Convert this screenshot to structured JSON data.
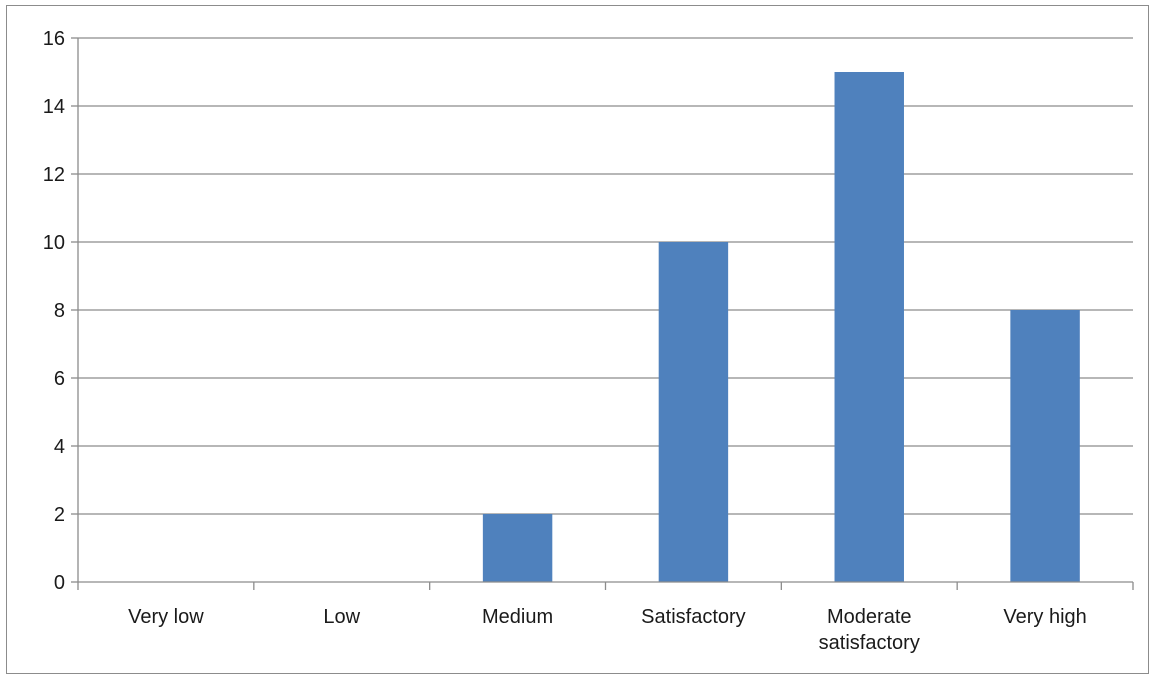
{
  "chart_data": {
    "type": "bar",
    "title": "",
    "xlabel": "",
    "ylabel": "",
    "categories": [
      [
        "Very low"
      ],
      [
        "Low"
      ],
      [
        "Medium"
      ],
      [
        "Satisfactory"
      ],
      [
        "Moderate",
        "satisfactory"
      ],
      [
        "Very high"
      ]
    ],
    "values": [
      0,
      0,
      2,
      10,
      15,
      8
    ],
    "ylim": [
      0,
      16
    ],
    "yticks": [
      "0",
      "2",
      "4",
      "6",
      "8",
      "10",
      "12",
      "14",
      "16"
    ],
    "grid": true,
    "legend": "none",
    "bar_color": "#4f81bd"
  }
}
